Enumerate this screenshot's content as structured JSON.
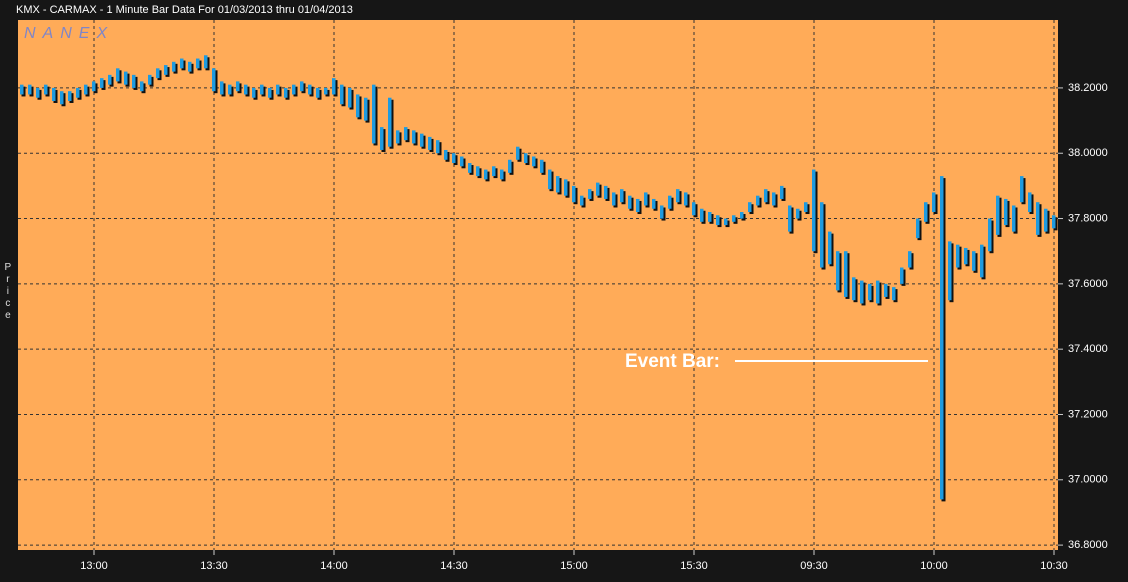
{
  "chart_data": {
    "type": "range-bar",
    "title": "KMX - CARMAX - 1 Minute Bar Data For 01/03/2013  thru  01/04/2013",
    "watermark": "NANEX",
    "y_label": "Price",
    "annotation": "Event Bar:",
    "color": "#1e9be0",
    "grid": true,
    "categories": [
      null,
      null,
      null,
      null,
      null,
      null,
      null,
      null,
      null,
      "13:00",
      null,
      null,
      null,
      null,
      null,
      null,
      null,
      null,
      null,
      null,
      null,
      null,
      null,
      null,
      "13:30",
      null,
      null,
      null,
      null,
      null,
      null,
      null,
      null,
      null,
      null,
      null,
      null,
      null,
      null,
      "14:00",
      null,
      null,
      null,
      null,
      null,
      null,
      null,
      null,
      null,
      null,
      null,
      null,
      null,
      null,
      "14:30",
      null,
      null,
      null,
      null,
      null,
      null,
      null,
      null,
      null,
      null,
      null,
      null,
      null,
      null,
      "15:00",
      null,
      null,
      null,
      null,
      null,
      null,
      null,
      null,
      null,
      null,
      null,
      null,
      null,
      null,
      "15:30",
      null,
      null,
      null,
      null,
      null,
      null,
      null,
      null,
      null,
      null,
      null,
      null,
      null,
      null,
      "09:30",
      null,
      null,
      null,
      null,
      null,
      null,
      null,
      null,
      null,
      null,
      null,
      null,
      null,
      null,
      "10:00",
      null,
      null,
      null,
      null,
      null,
      null,
      null,
      null,
      null,
      null,
      null,
      null,
      null,
      null,
      "10:30"
    ],
    "high": [
      38.21,
      38.21,
      38.2,
      38.21,
      38.2,
      38.19,
      38.19,
      38.2,
      38.21,
      38.22,
      38.23,
      38.24,
      38.26,
      38.25,
      38.24,
      38.22,
      38.24,
      38.26,
      38.27,
      38.28,
      38.29,
      38.28,
      38.29,
      38.3,
      38.26,
      38.22,
      38.21,
      38.22,
      38.21,
      38.2,
      38.21,
      38.2,
      38.21,
      38.2,
      38.21,
      38.22,
      38.21,
      38.2,
      38.2,
      38.23,
      38.21,
      38.2,
      38.18,
      38.17,
      38.21,
      38.08,
      38.17,
      38.07,
      38.08,
      38.07,
      38.06,
      38.05,
      38.04,
      38.01,
      38.0,
      37.99,
      37.97,
      37.96,
      37.95,
      37.96,
      37.95,
      37.98,
      38.02,
      38.0,
      37.99,
      37.98,
      37.95,
      37.93,
      37.92,
      37.9,
      37.87,
      37.89,
      37.91,
      37.9,
      37.88,
      37.89,
      37.87,
      37.86,
      37.88,
      37.86,
      37.84,
      37.87,
      37.89,
      37.88,
      37.85,
      37.83,
      37.82,
      37.81,
      37.8,
      37.81,
      37.82,
      37.85,
      37.87,
      37.89,
      37.88,
      37.9,
      37.84,
      37.83,
      37.85,
      37.95,
      37.85,
      37.76,
      37.7,
      37.7,
      37.62,
      37.61,
      37.6,
      37.61,
      37.6,
      37.59,
      37.65,
      37.7,
      37.8,
      37.85,
      37.88,
      37.93,
      37.73,
      37.72,
      37.71,
      37.7,
      37.72,
      37.8,
      37.87,
      37.86,
      37.84,
      37.93,
      37.88,
      37.85,
      37.83,
      37.81
    ],
    "low": [
      38.18,
      38.18,
      38.17,
      38.18,
      38.16,
      38.15,
      38.16,
      38.17,
      38.18,
      38.19,
      38.2,
      38.21,
      38.22,
      38.21,
      38.2,
      38.19,
      38.21,
      38.23,
      38.24,
      38.25,
      38.26,
      38.25,
      38.26,
      38.26,
      38.19,
      38.18,
      38.18,
      38.19,
      38.18,
      38.17,
      38.18,
      38.17,
      38.18,
      38.17,
      38.18,
      38.19,
      38.18,
      38.17,
      38.18,
      38.18,
      38.15,
      38.14,
      38.11,
      38.1,
      38.03,
      38.01,
      38.02,
      38.03,
      38.04,
      38.03,
      38.02,
      38.01,
      38.0,
      37.98,
      37.97,
      37.96,
      37.94,
      37.93,
      37.92,
      37.93,
      37.92,
      37.94,
      37.98,
      37.97,
      37.96,
      37.94,
      37.89,
      37.88,
      37.87,
      37.85,
      37.84,
      37.86,
      37.87,
      37.86,
      37.84,
      37.85,
      37.83,
      37.82,
      37.84,
      37.83,
      37.8,
      37.83,
      37.85,
      37.84,
      37.81,
      37.79,
      37.79,
      37.78,
      37.78,
      37.79,
      37.8,
      37.82,
      37.84,
      37.85,
      37.84,
      37.86,
      37.76,
      37.8,
      37.82,
      37.7,
      37.65,
      37.66,
      37.58,
      37.56,
      37.55,
      37.54,
      37.55,
      37.54,
      37.56,
      37.55,
      37.6,
      37.65,
      37.74,
      37.79,
      37.82,
      36.94,
      37.55,
      37.65,
      37.66,
      37.64,
      37.62,
      37.7,
      37.75,
      37.78,
      37.76,
      37.85,
      37.82,
      37.75,
      37.76,
      37.77
    ],
    "ylim": [
      36.785,
      38.408
    ],
    "yticks": [
      {
        "value": 36.8,
        "label": "36.8000"
      },
      {
        "value": 37.0,
        "label": "37.0000"
      },
      {
        "value": 37.2,
        "label": "37.2000"
      },
      {
        "value": 37.4,
        "label": "37.4000"
      },
      {
        "value": 37.6,
        "label": "37.6000"
      },
      {
        "value": 37.8,
        "label": "37.8000"
      },
      {
        "value": 38.0,
        "label": "38.0000"
      },
      {
        "value": 38.2,
        "label": "38.2000"
      }
    ]
  }
}
